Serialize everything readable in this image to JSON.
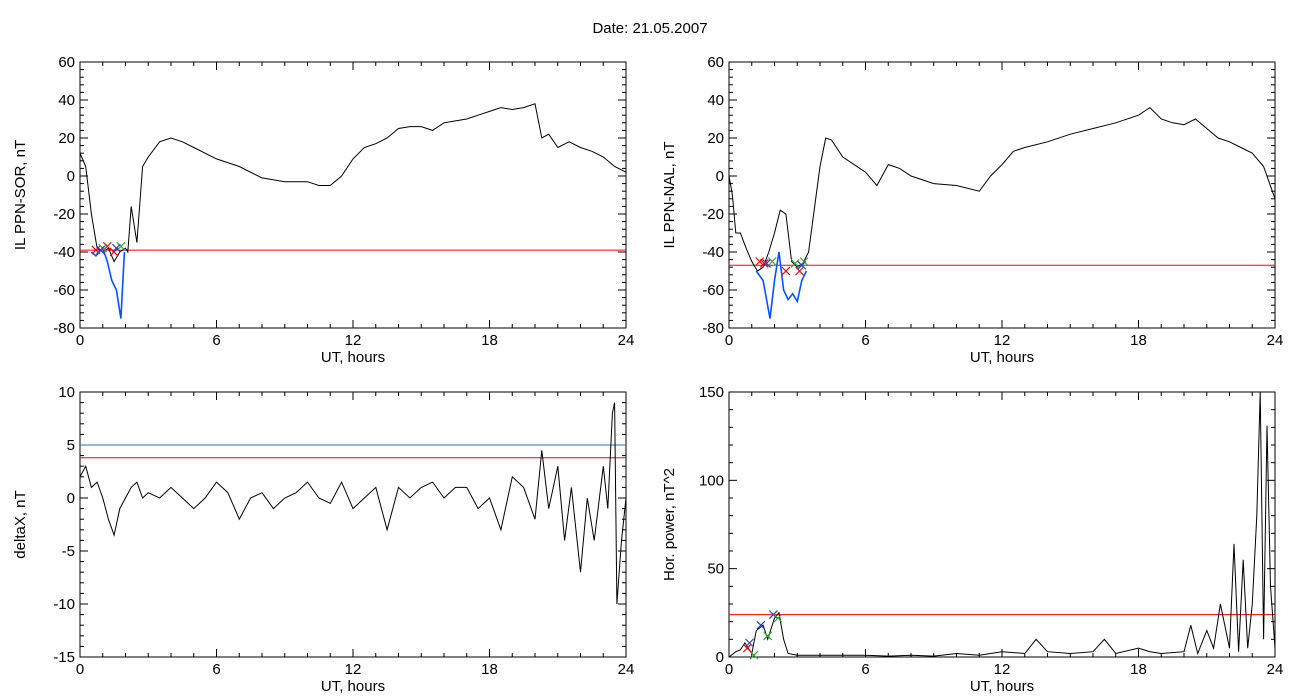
{
  "page": {
    "title": "Date:  21.05.2007"
  },
  "chart_data": [
    {
      "id": "sor",
      "type": "line",
      "ylabel": "IL PPN-SOR, nT",
      "xlabel": "UT, hours",
      "xlim": [
        0,
        24
      ],
      "ylim": [
        -80,
        60
      ],
      "x_ticks": [
        0,
        6,
        12,
        18,
        24
      ],
      "y_ticks": [
        -80,
        -60,
        -40,
        -20,
        0,
        20,
        40,
        60
      ],
      "threshold_lines": [
        {
          "value": -39,
          "color": "#ff0000"
        }
      ],
      "series": [
        {
          "color": "#000000",
          "x": [
            0,
            0.25,
            0.5,
            0.75,
            1,
            1.25,
            1.5,
            1.75,
            2,
            2.1,
            2.25,
            2.5,
            2.75,
            3,
            3.5,
            4,
            4.5,
            5,
            6,
            7,
            8,
            9,
            10,
            10.5,
            11,
            11.5,
            12,
            12.5,
            13,
            13.5,
            14,
            14.5,
            15,
            15.5,
            16,
            16.5,
            17,
            17.5,
            18,
            18.5,
            19,
            19.5,
            20,
            20.3,
            20.6,
            21,
            21.5,
            22,
            22.5,
            23,
            23.5,
            24
          ],
          "y": [
            12,
            5,
            -20,
            -38,
            -40,
            -38,
            -45,
            -40,
            -38,
            -40,
            -16,
            -35,
            5,
            10,
            18,
            20,
            18,
            15,
            9,
            5,
            -1,
            -3,
            -3,
            -5,
            -5,
            0,
            9,
            15,
            17,
            20,
            25,
            26,
            26,
            24,
            28,
            29,
            30,
            32,
            34,
            36,
            35,
            36,
            38,
            20,
            22,
            15,
            18,
            15,
            13,
            10,
            5,
            2
          ]
        },
        {
          "color": "#0055ff",
          "x": [
            0.5,
            0.7,
            1.0,
            1.2,
            1.4,
            1.6,
            1.8,
            1.95
          ],
          "y": [
            -40,
            -42,
            -38,
            -45,
            -55,
            -60,
            -75,
            -40
          ]
        }
      ],
      "markers": [
        {
          "x": 0.7,
          "y": -39,
          "color": "#ff0000"
        },
        {
          "x": 1.2,
          "y": -37,
          "color": "#ff0000"
        },
        {
          "x": 1.5,
          "y": -40,
          "color": "#ff0000"
        },
        {
          "x": 1.0,
          "y": -38,
          "color": "#33aa33"
        },
        {
          "x": 1.8,
          "y": -37,
          "color": "#33aa33"
        },
        {
          "x": 0.9,
          "y": -39,
          "color": "#2244cc"
        },
        {
          "x": 1.6,
          "y": -38,
          "color": "#2244cc"
        }
      ]
    },
    {
      "id": "nal",
      "type": "line",
      "ylabel": "IL PPN-NAL, nT",
      "xlabel": "UT, hours",
      "xlim": [
        0,
        24
      ],
      "ylim": [
        -80,
        60
      ],
      "x_ticks": [
        0,
        6,
        12,
        18,
        24
      ],
      "y_ticks": [
        -80,
        -60,
        -40,
        -20,
        0,
        20,
        40,
        60
      ],
      "threshold_lines": [
        {
          "value": -47,
          "color": "#ff0000"
        }
      ],
      "series": [
        {
          "color": "#000000",
          "x": [
            0,
            0.15,
            0.3,
            0.5,
            0.75,
            1.0,
            1.25,
            1.5,
            1.75,
            2.0,
            2.25,
            2.5,
            2.75,
            3.0,
            3.25,
            3.5,
            4.0,
            4.25,
            4.5,
            5.0,
            5.5,
            6.0,
            6.5,
            7.0,
            7.5,
            8.0,
            9.0,
            10.0,
            11.0,
            11.5,
            12.0,
            12.5,
            13.0,
            14.0,
            15.0,
            16.0,
            17.0,
            18.0,
            18.5,
            19.0,
            19.5,
            20.0,
            20.5,
            21.0,
            21.5,
            22.0,
            22.5,
            23.0,
            23.5,
            24.0
          ],
          "y": [
            0,
            -10,
            -30,
            -30,
            -38,
            -45,
            -50,
            -48,
            -40,
            -30,
            -18,
            -20,
            -45,
            -48,
            -46,
            -40,
            5,
            20,
            19,
            10,
            6,
            2,
            -5,
            6,
            4,
            0,
            -4,
            -5,
            -8,
            0,
            6,
            13,
            15,
            18,
            22,
            25,
            28,
            32,
            36,
            30,
            28,
            27,
            30,
            25,
            20,
            18,
            15,
            12,
            5,
            -12
          ]
        },
        {
          "color": "#0055ff",
          "x": [
            1.2,
            1.5,
            1.8,
            2.0,
            2.2,
            2.4,
            2.6,
            2.8,
            3.0,
            3.2,
            3.4
          ],
          "y": [
            -50,
            -55,
            -75,
            -55,
            -40,
            -60,
            -65,
            -62,
            -66,
            -55,
            -50
          ]
        }
      ],
      "markers": [
        {
          "x": 1.35,
          "y": -45,
          "color": "#ff0000"
        },
        {
          "x": 1.55,
          "y": -46,
          "color": "#ff0000"
        },
        {
          "x": 2.5,
          "y": -50,
          "color": "#ff0000"
        },
        {
          "x": 3.1,
          "y": -50,
          "color": "#ff0000"
        },
        {
          "x": 1.9,
          "y": -45,
          "color": "#33aa33"
        },
        {
          "x": 2.9,
          "y": -46,
          "color": "#33aa33"
        },
        {
          "x": 3.3,
          "y": -45,
          "color": "#33aa33"
        },
        {
          "x": 1.65,
          "y": -46,
          "color": "#2244cc"
        },
        {
          "x": 3.2,
          "y": -47,
          "color": "#2244cc"
        }
      ]
    },
    {
      "id": "deltax",
      "type": "line",
      "ylabel": "deltaX, nT",
      "xlabel": "UT, hours",
      "xlim": [
        0,
        24
      ],
      "ylim": [
        -15,
        10
      ],
      "x_ticks": [
        0,
        6,
        12,
        18,
        24
      ],
      "y_ticks": [
        -15,
        -10,
        -5,
        0,
        5,
        10
      ],
      "threshold_lines": [
        {
          "value": 5,
          "color": "#1f77b4"
        },
        {
          "value": 3.8,
          "color": "#ff0000"
        }
      ],
      "series": [
        {
          "color": "#000000",
          "x": [
            0,
            0.25,
            0.5,
            0.75,
            1,
            1.25,
            1.5,
            1.75,
            2,
            2.25,
            2.5,
            2.75,
            3,
            3.5,
            4,
            4.5,
            5,
            5.5,
            6,
            6.5,
            7,
            7.5,
            8,
            8.5,
            9,
            9.5,
            10,
            10.5,
            11,
            11.5,
            12,
            12.5,
            13,
            13.5,
            14,
            14.5,
            15,
            15.5,
            16,
            16.5,
            17,
            17.5,
            18,
            18.5,
            19,
            19.5,
            20,
            20.3,
            20.6,
            21,
            21.3,
            21.6,
            22,
            22.3,
            22.6,
            23,
            23.2,
            23.4,
            23.5,
            23.6,
            23.8,
            24
          ],
          "y": [
            2,
            3,
            1,
            1.5,
            0,
            -2,
            -3.5,
            -1,
            0,
            1,
            1.5,
            0,
            0.5,
            0,
            1,
            0,
            -1,
            0,
            1.5,
            0.5,
            -2,
            0,
            0.5,
            -1,
            0,
            0.5,
            1.5,
            0,
            -0.5,
            1.5,
            -1,
            0,
            1,
            -3,
            1,
            0,
            1,
            1.5,
            0,
            1,
            1,
            -1,
            0,
            -3,
            2,
            1,
            -2,
            4.5,
            -1,
            3,
            -4,
            1,
            -7,
            0,
            -4,
            3,
            -1,
            8,
            9,
            -10,
            -4,
            0
          ]
        }
      ],
      "markers": []
    },
    {
      "id": "power",
      "type": "line",
      "ylabel": "Hor. power, nT^2",
      "xlabel": "UT, hours",
      "xlim": [
        0,
        24
      ],
      "ylim": [
        0,
        150
      ],
      "x_ticks": [
        0,
        6,
        12,
        18,
        24
      ],
      "y_ticks": [
        0,
        50,
        100,
        150
      ],
      "threshold_lines": [
        {
          "value": 24,
          "color": "#ff0000"
        }
      ],
      "series": [
        {
          "color": "#000000",
          "x": [
            0,
            0.3,
            0.5,
            0.7,
            1.0,
            1.2,
            1.5,
            1.7,
            2.0,
            2.2,
            2.4,
            2.6,
            3.0,
            4.0,
            5.0,
            6.0,
            7.0,
            8.0,
            9.0,
            10.0,
            11.0,
            12.0,
            13.0,
            13.5,
            14.0,
            15.0,
            16.0,
            16.5,
            17.0,
            18.0,
            18.5,
            19.0,
            20.0,
            20.3,
            20.6,
            21.0,
            21.3,
            21.6,
            22.0,
            22.2,
            22.4,
            22.6,
            22.8,
            23.0,
            23.2,
            23.35,
            23.5,
            23.65,
            23.8,
            24.0
          ],
          "y": [
            0,
            3,
            4,
            8,
            2,
            15,
            18,
            10,
            22,
            25,
            10,
            2,
            1,
            1,
            1,
            1,
            0.5,
            1,
            0.5,
            2,
            1,
            3,
            2,
            10,
            3,
            2,
            3,
            10,
            2,
            5,
            3,
            2,
            3,
            18,
            2,
            15,
            5,
            30,
            5,
            64,
            3,
            55,
            5,
            30,
            80,
            150,
            10,
            131,
            40,
            5
          ]
        }
      ],
      "markers": [
        {
          "x": 0.9,
          "y": 8,
          "color": "#2244cc"
        },
        {
          "x": 1.4,
          "y": 18,
          "color": "#2244cc"
        },
        {
          "x": 1.95,
          "y": 24,
          "color": "#2244cc"
        },
        {
          "x": 1.1,
          "y": 1,
          "color": "#33aa33"
        },
        {
          "x": 1.7,
          "y": 12,
          "color": "#33aa33"
        },
        {
          "x": 2.15,
          "y": 22,
          "color": "#33aa33"
        },
        {
          "x": 0.8,
          "y": 5,
          "color": "#ff0000"
        }
      ]
    }
  ]
}
